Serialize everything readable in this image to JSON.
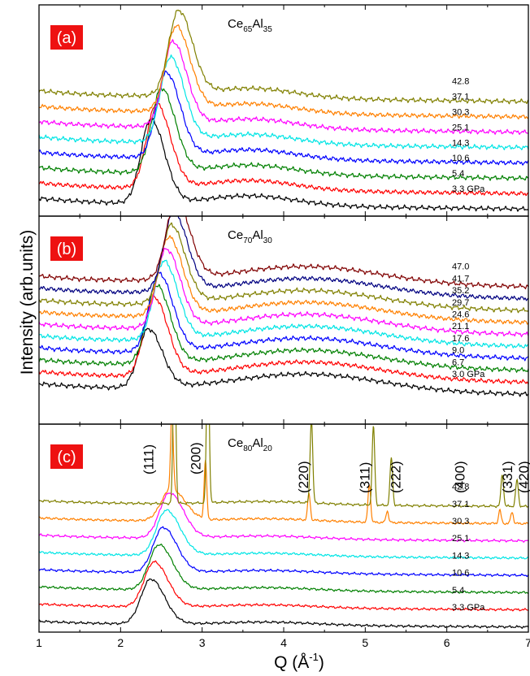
{
  "chart_data": {
    "type": "line",
    "ylabel": "Intensity (arb.units)",
    "xlabel_main": "Q (Å",
    "xlabel_exp": "-1",
    "xlabel_close": ")",
    "xlim": [
      1,
      7
    ],
    "x_ticks": [
      "1",
      "2",
      "3",
      "4",
      "5",
      "6",
      "7"
    ],
    "panels": [
      {
        "tag": "(a)",
        "alloy": {
          "el1": "Ce",
          "n1": "65",
          "el2": "Al",
          "n2": "35"
        },
        "first_peak_height": 0.86,
        "broad_peak": {
          "q": 3.6,
          "height": 0.1,
          "width": 0.55
        },
        "series": [
          {
            "label": "3.3 GPa",
            "color": "#000000",
            "q1": 2.37,
            "amp": 1.0
          },
          {
            "label": "5.4",
            "color": "#ff0000",
            "q1": 2.44,
            "amp": 1.0
          },
          {
            "label": "10.6",
            "color": "#008000",
            "q1": 2.5,
            "amp": 1.0
          },
          {
            "label": "14.3",
            "color": "#0000ff",
            "q1": 2.56,
            "amp": 1.0
          },
          {
            "label": "25.1",
            "color": "#00e5e5",
            "q1": 2.61,
            "amp": 1.0
          },
          {
            "label": "30.3",
            "color": "#ff00ff",
            "q1": 2.64,
            "amp": 1.0
          },
          {
            "label": "37.1",
            "color": "#ff8000",
            "q1": 2.68,
            "amp": 1.0
          },
          {
            "label": "42.8",
            "color": "#808000",
            "q1": 2.71,
            "amp": 1.0
          }
        ]
      },
      {
        "tag": "(b)",
        "alloy": {
          "el1": "Ce",
          "n1": "70",
          "el2": "Al",
          "n2": "30"
        },
        "first_peak_height": 0.8,
        "broad_peak": {
          "q": 4.3,
          "height": 0.18,
          "width": 0.9
        },
        "series": [
          {
            "label": "3.0 GPa",
            "color": "#000000",
            "q1": 2.34,
            "amp": 0.75
          },
          {
            "label": "6.7",
            "color": "#ff0000",
            "q1": 2.41,
            "amp": 1.0
          },
          {
            "label": "9.0",
            "color": "#008000",
            "q1": 2.44,
            "amp": 1.0
          },
          {
            "label": "17.6",
            "color": "#0000ff",
            "q1": 2.47,
            "amp": 1.0
          },
          {
            "label": "21.1",
            "color": "#00e5e5",
            "q1": 2.53,
            "amp": 1.0
          },
          {
            "label": "24.6",
            "color": "#ff00ff",
            "q1": 2.56,
            "amp": 1.0
          },
          {
            "label": "29.7",
            "color": "#ff8000",
            "q1": 2.59,
            "amp": 1.0
          },
          {
            "label": "35.2",
            "color": "#808000",
            "q1": 2.62,
            "amp": 1.0
          },
          {
            "label": "41.7",
            "color": "#000080",
            "q1": 2.65,
            "amp": 1.0
          },
          {
            "label": "47.0",
            "color": "#800000",
            "q1": 2.68,
            "amp": 1.0
          }
        ]
      },
      {
        "tag": "(c)",
        "alloy": {
          "el1": "Ce",
          "n1": "80",
          "el2": "Al",
          "n2": "20"
        },
        "first_peak_height": 0.85,
        "broad_peak": {
          "q": 3.8,
          "height": 0.06,
          "width": 0.6
        },
        "series": [
          {
            "label": "3.3 GPa",
            "color": "#000000",
            "q1": 2.37,
            "amp": 1.0
          },
          {
            "label": "5.4",
            "color": "#ff0000",
            "q1": 2.41,
            "amp": 1.0
          },
          {
            "label": "10.6",
            "color": "#008000",
            "q1": 2.47,
            "amp": 1.0
          },
          {
            "label": "14.3",
            "color": "#0000ff",
            "q1": 2.52,
            "amp": 1.0
          },
          {
            "label": "25.1",
            "color": "#00e5e5",
            "q1": 2.56,
            "amp": 1.0
          },
          {
            "label": "30.3",
            "color": "#ff00ff",
            "q1": 2.6,
            "amp": 1.0
          },
          {
            "label": "37.1",
            "color": "#ff8000",
            "q1": 2.62,
            "amp": 0.7,
            "bragg_peaks": [
              [
                2.63,
                1.5
              ],
              [
                3.04,
                1.1
              ],
              [
                4.31,
                0.5
              ],
              [
                5.05,
                0.72
              ],
              [
                5.27,
                0.22
              ],
              [
                6.65,
                0.25
              ],
              [
                6.8,
                0.22
              ]
            ]
          },
          {
            "label": "42.8",
            "color": "#808000",
            "q1": 2.65,
            "amp": 0.0,
            "bragg_peaks": [
              [
                2.66,
                3.2
              ],
              [
                3.07,
                3.2
              ],
              [
                4.34,
                1.6
              ],
              [
                5.1,
                1.5
              ],
              [
                5.32,
                0.9
              ],
              [
                6.68,
                0.6
              ],
              [
                6.86,
                0.5
              ]
            ]
          }
        ],
        "reflections": [
          {
            "hkl": "(111)",
            "q": 2.3
          },
          {
            "hkl": "(200)",
            "q": 2.88
          },
          {
            "hkl": "(220)",
            "q": 4.2
          },
          {
            "hkl": "(311)",
            "q": 4.95
          },
          {
            "hkl": "(222)",
            "q": 5.33
          },
          {
            "hkl": "(400)",
            "q": 6.12
          },
          {
            "hkl": "(331)",
            "q": 6.7
          },
          {
            "hkl": "(420)",
            "q": 6.9
          }
        ]
      }
    ]
  },
  "colors": {
    "tag_bg": "#ee1111",
    "tag_text": "#ffffff",
    "axis": "#000000"
  }
}
